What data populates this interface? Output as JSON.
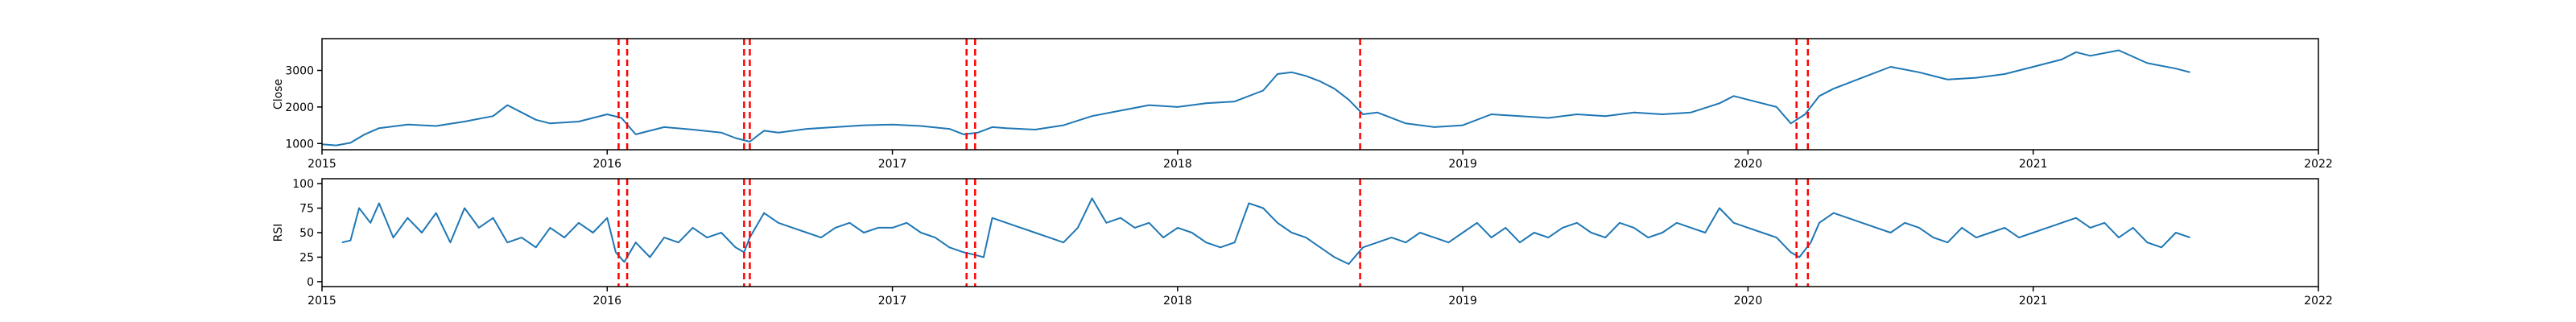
{
  "chart_data": [
    {
      "type": "line",
      "ylabel": "Close",
      "xlim": [
        2015.0,
        2022.0
      ],
      "ylim": [
        830,
        3870
      ],
      "xticks": [
        "2015",
        "2016",
        "2017",
        "2018",
        "2019",
        "2020",
        "2021",
        "2022"
      ],
      "yticks": [
        "1000",
        "2000",
        "3000"
      ],
      "grid": false,
      "series": [
        {
          "color": "#1f77b4",
          "x": [
            2015.0,
            2015.05,
            2015.1,
            2015.15,
            2015.2,
            2015.3,
            2015.4,
            2015.5,
            2015.6,
            2015.65,
            2015.7,
            2015.75,
            2015.8,
            2015.9,
            2016.0,
            2016.05,
            2016.1,
            2016.15,
            2016.2,
            2016.3,
            2016.4,
            2016.45,
            2016.5,
            2016.55,
            2016.6,
            2016.7,
            2016.8,
            2016.9,
            2017.0,
            2017.1,
            2017.2,
            2017.25,
            2017.3,
            2017.35,
            2017.4,
            2017.5,
            2017.6,
            2017.7,
            2017.8,
            2017.9,
            2018.0,
            2018.1,
            2018.2,
            2018.3,
            2018.35,
            2018.4,
            2018.45,
            2018.5,
            2018.55,
            2018.6,
            2018.65,
            2018.7,
            2018.8,
            2018.9,
            2019.0,
            2019.1,
            2019.2,
            2019.3,
            2019.4,
            2019.5,
            2019.6,
            2019.7,
            2019.8,
            2019.9,
            2019.95,
            2020.0,
            2020.1,
            2020.15,
            2020.2,
            2020.25,
            2020.3,
            2020.4,
            2020.5,
            2020.6,
            2020.7,
            2020.8,
            2020.9,
            2021.0,
            2021.1,
            2021.15,
            2021.2,
            2021.3,
            2021.4,
            2021.5,
            2021.55
          ],
          "values": [
            980,
            950,
            1020,
            1250,
            1420,
            1520,
            1480,
            1600,
            1750,
            2050,
            1850,
            1650,
            1550,
            1600,
            1800,
            1700,
            1250,
            1350,
            1450,
            1380,
            1300,
            1150,
            1050,
            1350,
            1300,
            1400,
            1450,
            1500,
            1520,
            1480,
            1400,
            1250,
            1300,
            1450,
            1420,
            1380,
            1500,
            1750,
            1900,
            2050,
            2000,
            2100,
            2150,
            2450,
            2900,
            2950,
            2850,
            2700,
            2500,
            2200,
            1800,
            1850,
            1550,
            1450,
            1500,
            1800,
            1750,
            1700,
            1800,
            1750,
            1850,
            1800,
            1850,
            2100,
            2300,
            2200,
            2000,
            1550,
            1800,
            2300,
            2500,
            2800,
            3100,
            2950,
            2750,
            2800,
            2900,
            3100,
            3300,
            3500,
            3400,
            3550,
            3200,
            3050,
            2950
          ]
        }
      ]
    },
    {
      "type": "line",
      "ylabel": "RSI",
      "xlim": [
        2015.0,
        2022.0
      ],
      "ylim": [
        -5,
        105
      ],
      "xticks": [
        "2015",
        "2016",
        "2017",
        "2018",
        "2019",
        "2020",
        "2021",
        "2022"
      ],
      "yticks": [
        "0",
        "25",
        "50",
        "75",
        "100"
      ],
      "grid": false,
      "series": [
        {
          "color": "#1f77b4",
          "x": [
            2015.07,
            2015.1,
            2015.13,
            2015.17,
            2015.2,
            2015.25,
            2015.3,
            2015.35,
            2015.4,
            2015.45,
            2015.5,
            2015.55,
            2015.6,
            2015.65,
            2015.7,
            2015.75,
            2015.8,
            2015.85,
            2015.9,
            2015.95,
            2016.0,
            2016.03,
            2016.06,
            2016.1,
            2016.15,
            2016.2,
            2016.25,
            2016.3,
            2016.35,
            2016.4,
            2016.45,
            2016.48,
            2016.5,
            2016.55,
            2016.6,
            2016.65,
            2016.7,
            2016.75,
            2016.8,
            2016.85,
            2016.9,
            2016.95,
            2017.0,
            2017.05,
            2017.1,
            2017.15,
            2017.2,
            2017.25,
            2017.28,
            2017.32,
            2017.35,
            2017.4,
            2017.45,
            2017.5,
            2017.55,
            2017.6,
            2017.65,
            2017.7,
            2017.75,
            2017.8,
            2017.85,
            2017.9,
            2017.95,
            2018.0,
            2018.05,
            2018.1,
            2018.15,
            2018.2,
            2018.25,
            2018.3,
            2018.35,
            2018.4,
            2018.45,
            2018.5,
            2018.55,
            2018.6,
            2018.65,
            2018.7,
            2018.75,
            2018.8,
            2018.85,
            2018.9,
            2018.95,
            2019.0,
            2019.05,
            2019.1,
            2019.15,
            2019.2,
            2019.25,
            2019.3,
            2019.35,
            2019.4,
            2019.45,
            2019.5,
            2019.55,
            2019.6,
            2019.65,
            2019.7,
            2019.75,
            2019.8,
            2019.85,
            2019.9,
            2019.95,
            2020.0,
            2020.05,
            2020.1,
            2020.15,
            2020.18,
            2020.22,
            2020.25,
            2020.3,
            2020.35,
            2020.4,
            2020.45,
            2020.5,
            2020.55,
            2020.6,
            2020.65,
            2020.7,
            2020.75,
            2020.8,
            2020.85,
            2020.9,
            2020.95,
            2021.0,
            2021.05,
            2021.1,
            2021.15,
            2021.2,
            2021.25,
            2021.3,
            2021.35,
            2021.4,
            2021.45,
            2021.5,
            2021.55
          ],
          "values": [
            40,
            42,
            75,
            60,
            80,
            45,
            65,
            50,
            70,
            40,
            75,
            55,
            65,
            40,
            45,
            35,
            55,
            45,
            60,
            50,
            65,
            30,
            20,
            40,
            25,
            45,
            40,
            55,
            45,
            50,
            35,
            30,
            45,
            70,
            60,
            55,
            50,
            45,
            55,
            60,
            50,
            55,
            55,
            60,
            50,
            45,
            35,
            30,
            28,
            25,
            65,
            60,
            55,
            50,
            45,
            40,
            55,
            85,
            60,
            65,
            55,
            60,
            45,
            55,
            50,
            40,
            35,
            40,
            80,
            75,
            60,
            50,
            45,
            35,
            25,
            18,
            35,
            40,
            45,
            40,
            50,
            45,
            40,
            50,
            60,
            45,
            55,
            40,
            50,
            45,
            55,
            60,
            50,
            45,
            60,
            55,
            45,
            50,
            60,
            55,
            50,
            75,
            60,
            55,
            50,
            45,
            30,
            25,
            40,
            60,
            70,
            65,
            60,
            55,
            50,
            60,
            55,
            45,
            40,
            55,
            45,
            50,
            55,
            45,
            50,
            55,
            60,
            65,
            55,
            60,
            45,
            55,
            40,
            35,
            50,
            45
          ]
        }
      ]
    }
  ],
  "events": [
    2016.04,
    2016.07,
    2016.48,
    2016.5,
    2017.26,
    2017.29,
    2018.64,
    2020.17,
    2020.21
  ],
  "event_color": "#ff0000",
  "axis_color": "#000000"
}
